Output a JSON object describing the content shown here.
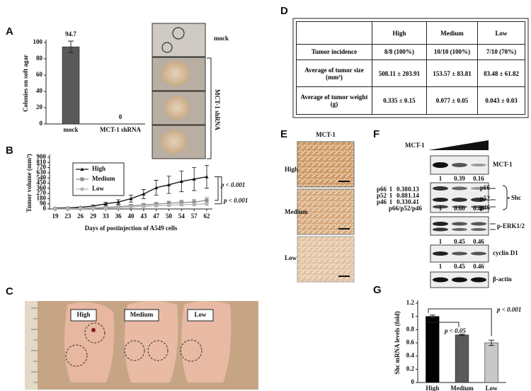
{
  "panel_labels": [
    "A",
    "B",
    "C",
    "D",
    "E",
    "F",
    "G"
  ],
  "chart_data": [
    {
      "type": "bar",
      "y_label": "Colonies on soft agar",
      "categories": [
        "mock",
        "MCT-1 shRNA"
      ],
      "values": [
        94.7,
        0
      ],
      "errors": [
        7,
        0
      ],
      "colors": [
        "#595959",
        "#595959"
      ],
      "ylim": [
        0,
        100
      ],
      "yticks": [
        0,
        20,
        40,
        60,
        80,
        100
      ],
      "data_labels": true
    },
    {
      "type": "line",
      "y_label": "Tumor volume (mm³)",
      "x_label": "Days of postinjection of A549 cells",
      "categories": [
        "19",
        "23",
        "26",
        "29",
        "33",
        "36",
        "40",
        "43",
        "47",
        "50",
        "54",
        "57",
        "62"
      ],
      "series": [
        {
          "name": "High",
          "color": "#111111",
          "marker": "triangle",
          "values": [
            15,
            20,
            30,
            50,
            90,
            120,
            180,
            260,
            370,
            420,
            480,
            520,
            560
          ],
          "errors": [
            5,
            8,
            10,
            15,
            25,
            40,
            60,
            80,
            130,
            150,
            180,
            200,
            200
          ]
        },
        {
          "name": "Medium",
          "color": "#8c8c8c",
          "marker": "square",
          "values": [
            5,
            8,
            12,
            18,
            30,
            40,
            55,
            70,
            85,
            100,
            110,
            120,
            150
          ],
          "errors": [
            3,
            4,
            5,
            8,
            12,
            15,
            20,
            25,
            30,
            35,
            40,
            45,
            50
          ]
        },
        {
          "name": "Low",
          "color": "#b4b4b4",
          "marker": "circle",
          "values": [
            3,
            5,
            8,
            12,
            18,
            25,
            35,
            45,
            55,
            65,
            75,
            80,
            90
          ],
          "errors": [
            2,
            3,
            4,
            5,
            8,
            10,
            12,
            15,
            18,
            20,
            22,
            25,
            30
          ]
        }
      ],
      "ylim": [
        0,
        900
      ],
      "yticks": [
        0,
        90,
        180,
        270,
        360,
        450,
        540,
        630,
        720,
        810,
        900
      ],
      "legend": "upper left",
      "annotations": [
        "p < 0.001",
        "p < 0.001"
      ]
    },
    {
      "type": "bar",
      "y_label": "Shc mRNA levels (fold)",
      "categories": [
        "High",
        "Medium",
        "Low"
      ],
      "values": [
        1,
        0.72,
        0.6
      ],
      "errors": [
        0.02,
        0.01,
        0.04
      ],
      "colors": [
        "#000000",
        "#5a5a5a",
        "#c8c8c8"
      ],
      "ylim": [
        0,
        1.2
      ],
      "yticks": [
        0,
        0.2,
        0.4,
        0.6,
        0.8,
        1,
        1.2
      ],
      "data_labels": false,
      "annotations": [
        "p < 0.05",
        "p < 0.001"
      ]
    }
  ],
  "colony_images": {
    "labels": [
      "mock",
      "MCT-1 shRNA"
    ]
  },
  "mouse_photo": {
    "labels": [
      "High",
      "Medium",
      "Low"
    ]
  },
  "table": {
    "columns": [
      "High",
      "Medium",
      "Low"
    ],
    "rows": [
      [
        "Tumor incidence",
        "8/8 (100%)",
        "10/10 (100%)",
        "7/10 (70%)"
      ],
      [
        "Average of tumor size (mm³)",
        "508.11 ± 203.91",
        "153.57 ± 83.81",
        "83.48 ± 61.82"
      ],
      [
        "Average of tumor weight (g)",
        "0.335 ± 0.15",
        "0.077 ± 0.05",
        "0.043 ± 0.03"
      ]
    ]
  },
  "ihc": {
    "title": "MCT-1",
    "labels": [
      "High",
      "Medium",
      "Low"
    ]
  },
  "western_blot": {
    "title": "MCT-1",
    "bands": [
      "MCT-1",
      "p66",
      "p52",
      "p46",
      "Shc",
      "p-ERK1/2",
      "cyclin D1",
      "β-actin"
    ],
    "quantification": [
      [
        "1",
        "0.39",
        "0.16"
      ],
      [
        "1",
        "0.45",
        "0.46"
      ],
      [
        "1",
        "0.45",
        "0.46"
      ]
    ],
    "shc_quant": {
      "labels": [
        "p66",
        "p52",
        "p46",
        "p66/p52/p46"
      ],
      "values": [
        [
          "1",
          "0.38",
          "0.13"
        ],
        [
          "1",
          "0.88",
          "1.14"
        ],
        [
          "1",
          "0.33",
          "0.41"
        ],
        [
          "1",
          "0.60",
          "0.48"
        ]
      ]
    }
  }
}
